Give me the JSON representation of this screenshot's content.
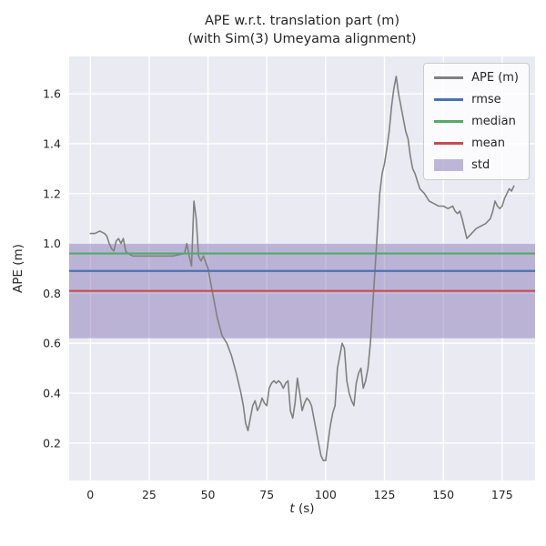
{
  "chart_data": {
    "type": "line",
    "title": "APE w.r.t. translation part (m)\n(with Sim(3) Umeyama alignment)",
    "title_lines": [
      "APE w.r.t. translation part (m)",
      "(with Sim(3) Umeyama alignment)"
    ],
    "xlabel_math": "t",
    "xlabel_rest": " (s)",
    "ylabel": "APE (m)",
    "xlim": [
      -9,
      189
    ],
    "ylim": [
      0.05,
      1.75
    ],
    "xticks": [
      0,
      25,
      50,
      75,
      100,
      125,
      150,
      175
    ],
    "xtick_labels": [
      "0",
      "25",
      "50",
      "75",
      "100",
      "125",
      "150",
      "175"
    ],
    "ytick_values": [
      0.2,
      0.4,
      0.6,
      0.8,
      1.0,
      1.2,
      1.4,
      1.6
    ],
    "ytick_labels": [
      "0.2",
      "0.4",
      "0.6",
      "0.8",
      "1.0",
      "1.2",
      "1.4",
      "1.6"
    ],
    "grid": true,
    "legend_position": "upper right",
    "stats": {
      "rmse": 0.89,
      "median": 0.96,
      "mean": 0.81,
      "std": 0.19,
      "std_band": [
        0.62,
        1.0
      ]
    },
    "series": {
      "name": "APE (m)",
      "t": [
        0,
        2,
        4,
        6,
        7,
        8,
        9,
        10,
        11,
        12,
        13,
        14,
        15,
        16,
        18,
        20,
        25,
        30,
        35,
        40,
        41,
        42,
        43,
        44,
        45,
        46,
        47,
        48,
        50,
        52,
        54,
        56,
        58,
        60,
        62,
        64,
        65,
        66,
        67,
        68,
        69,
        70,
        71,
        72,
        73,
        74,
        75,
        76,
        77,
        78,
        79,
        80,
        81,
        82,
        83,
        84,
        85,
        86,
        87,
        88,
        89,
        90,
        91,
        92,
        93,
        94,
        95,
        96,
        97,
        98,
        99,
        100,
        101,
        102,
        103,
        104,
        105,
        106,
        107,
        108,
        109,
        110,
        111,
        112,
        113,
        114,
        115,
        116,
        117,
        118,
        119,
        120,
        121,
        122,
        123,
        124,
        125,
        126,
        127,
        128,
        129,
        130,
        131,
        132,
        133,
        134,
        135,
        136,
        137,
        138,
        139,
        140,
        142,
        144,
        146,
        148,
        150,
        152,
        154,
        155,
        156,
        157,
        158,
        159,
        160,
        162,
        164,
        166,
        168,
        170,
        171,
        172,
        173,
        174,
        175,
        176,
        177,
        178,
        179,
        180
      ],
      "ape": [
        1.04,
        1.04,
        1.05,
        1.04,
        1.03,
        1.0,
        0.98,
        0.97,
        1.01,
        1.02,
        1.0,
        1.02,
        0.97,
        0.96,
        0.95,
        0.95,
        0.95,
        0.95,
        0.95,
        0.96,
        1.0,
        0.95,
        0.91,
        1.17,
        1.1,
        0.95,
        0.93,
        0.95,
        0.9,
        0.8,
        0.7,
        0.63,
        0.6,
        0.55,
        0.48,
        0.4,
        0.35,
        0.28,
        0.25,
        0.3,
        0.35,
        0.37,
        0.33,
        0.35,
        0.38,
        0.36,
        0.35,
        0.42,
        0.44,
        0.45,
        0.44,
        0.45,
        0.44,
        0.42,
        0.44,
        0.45,
        0.33,
        0.3,
        0.36,
        0.46,
        0.4,
        0.33,
        0.36,
        0.38,
        0.37,
        0.35,
        0.3,
        0.25,
        0.2,
        0.15,
        0.13,
        0.13,
        0.2,
        0.27,
        0.32,
        0.35,
        0.5,
        0.55,
        0.6,
        0.58,
        0.45,
        0.4,
        0.37,
        0.35,
        0.44,
        0.48,
        0.5,
        0.42,
        0.45,
        0.5,
        0.6,
        0.75,
        0.9,
        1.05,
        1.2,
        1.28,
        1.32,
        1.38,
        1.45,
        1.55,
        1.62,
        1.67,
        1.6,
        1.55,
        1.5,
        1.45,
        1.42,
        1.35,
        1.3,
        1.28,
        1.25,
        1.22,
        1.2,
        1.17,
        1.16,
        1.15,
        1.15,
        1.14,
        1.15,
        1.13,
        1.12,
        1.13,
        1.1,
        1.06,
        1.02,
        1.04,
        1.06,
        1.07,
        1.08,
        1.1,
        1.13,
        1.17,
        1.15,
        1.14,
        1.15,
        1.18,
        1.2,
        1.22,
        1.21,
        1.23
      ]
    },
    "legend": [
      {
        "label": "APE (m)",
        "type": "line",
        "color": "#808080",
        "name": "ape"
      },
      {
        "label": "rmse",
        "type": "line",
        "color": "#4c72b0",
        "name": "rmse"
      },
      {
        "label": "median",
        "type": "line",
        "color": "#55a868",
        "name": "median"
      },
      {
        "label": "mean",
        "type": "line",
        "color": "#c44e52",
        "name": "mean"
      },
      {
        "label": "std",
        "type": "patch",
        "color": "#8172b2",
        "name": "std"
      }
    ],
    "colors": {
      "axes_bg": "#eaeaf2",
      "grid": "#ffffff",
      "ape": "#808080",
      "rmse": "#4c72b0",
      "median": "#55a868",
      "mean": "#c44e52",
      "std": "#8172b2",
      "text": "#262626"
    }
  }
}
